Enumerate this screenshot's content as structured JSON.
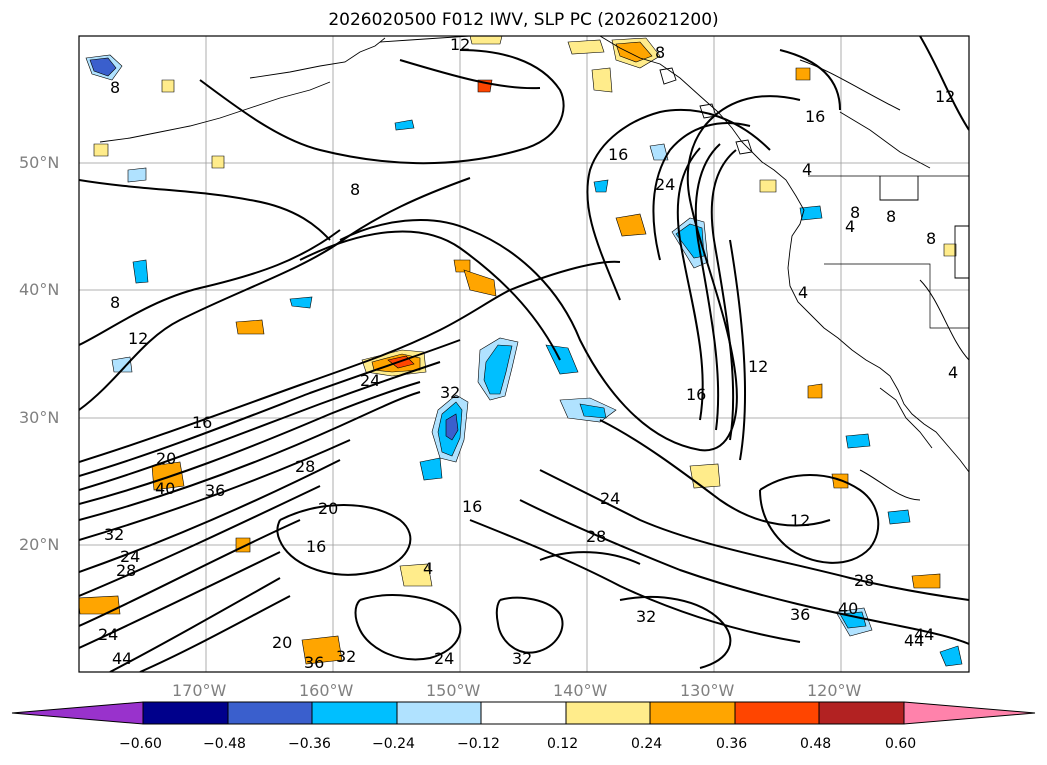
{
  "title": "2026020500 F012 IWV, SLP PC (2026021200)",
  "lat_labels": [
    "50°N",
    "40°N",
    "30°N",
    "20°N"
  ],
  "lon_labels": [
    "170°W",
    "160°W",
    "150°W",
    "140°W",
    "130°W",
    "120°W"
  ],
  "colorbar": {
    "ticks": [
      "−0.60",
      "−0.48",
      "−0.36",
      "−0.24",
      "−0.12",
      "0.12",
      "0.24",
      "0.36",
      "0.48",
      "0.60"
    ],
    "colors": [
      "#9932cc",
      "#00008b",
      "#3a5fcd",
      "#00bfff",
      "#b0e2ff",
      "#ffffff",
      "#ffec8b",
      "#ffa500",
      "#ff4500",
      "#b22222",
      "#ff82ab"
    ]
  },
  "contour_labels": [
    "12",
    "8",
    "8",
    "12",
    "16",
    "24",
    "8",
    "4",
    "4",
    "8",
    "8",
    "8",
    "4",
    "8",
    "12",
    "16",
    "12",
    "16",
    "24",
    "16",
    "20",
    "40",
    "28",
    "36",
    "20",
    "16",
    "16",
    "32",
    "24",
    "28",
    "32",
    "24",
    "28",
    "36",
    "40",
    "32",
    "20",
    "36",
    "32",
    "24",
    "32",
    "24",
    "44",
    "44",
    "4",
    "12",
    "28",
    "44",
    "4"
  ]
}
